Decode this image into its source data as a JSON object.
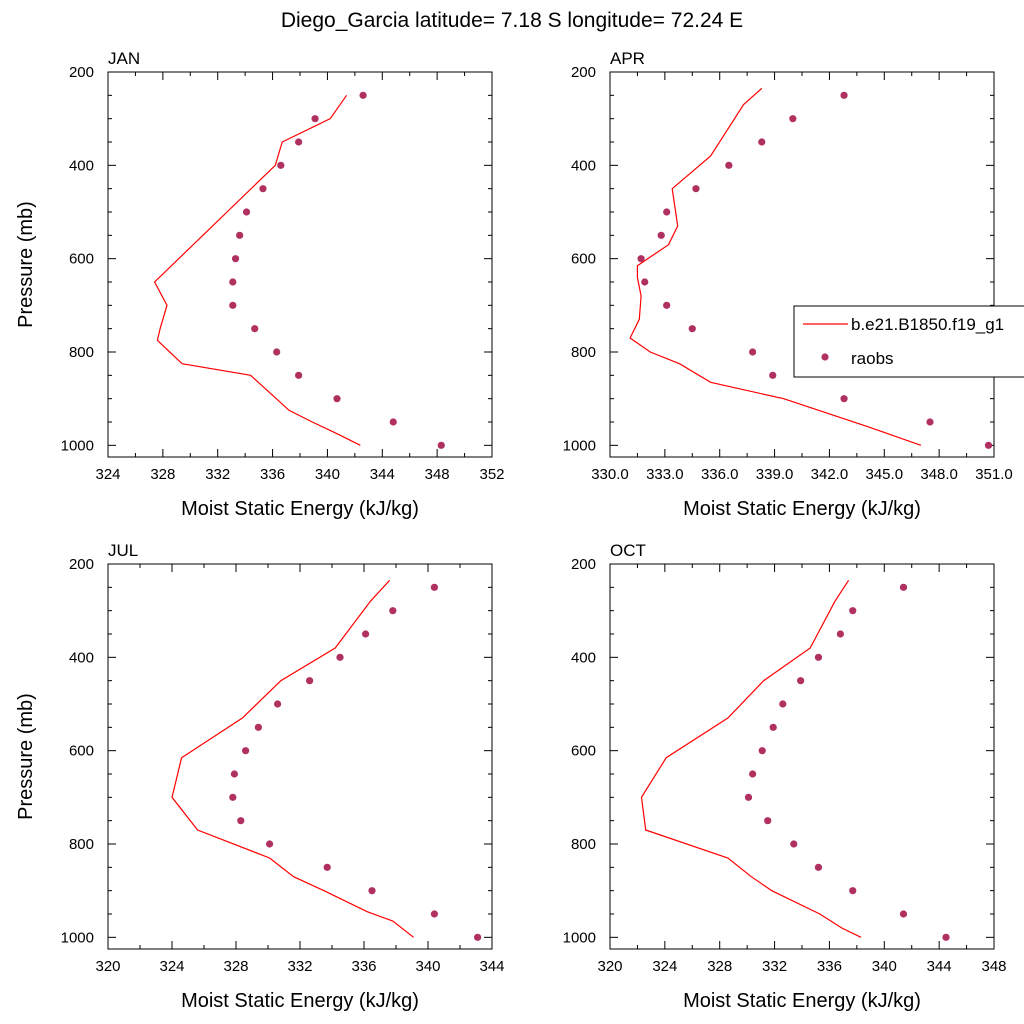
{
  "title": "Diego_Garcia  latitude= 7.18 S longitude= 72.24 E",
  "colors": {
    "model": "#ff0000",
    "obs": "#b03060",
    "axis": "#000000"
  },
  "legend": {
    "model_label": "b.e21.B1850.f19_g1",
    "obs_label": "raobs"
  },
  "chart_data": [
    {
      "type": "line",
      "panel": "JAN",
      "xlabel": "Moist Static Energy (kJ/kg)",
      "ylabel": "Pressure (mb)",
      "xlim": [
        324,
        352
      ],
      "ylim": [
        200,
        1025
      ],
      "y_inverted": true,
      "xticks": [
        324,
        328,
        332,
        336,
        340,
        344,
        348,
        352
      ],
      "xtick_labels": [
        "324",
        "328",
        "332",
        "336",
        "340",
        "344",
        "348",
        "352"
      ],
      "yticks": [
        200,
        400,
        600,
        800,
        1000
      ],
      "ytick_labels": [
        "200",
        "400",
        "600",
        "800",
        "1000"
      ],
      "model": {
        "name": "b.e21.B1850.f19_g1",
        "x": [
          342.4,
          340.7,
          338.9,
          337.2,
          334.4,
          329.4,
          327.6,
          327.8,
          328.3,
          327.4,
          336.2,
          336.7,
          340.2,
          341.4
        ],
        "y": [
          1000,
          975,
          950,
          925,
          850,
          825,
          775,
          750,
          700,
          650,
          400,
          350,
          300,
          250
        ]
      },
      "obs": {
        "name": "raobs",
        "x": [
          348.3,
          344.8,
          340.7,
          337.9,
          336.3,
          334.7,
          333.1,
          333.1,
          333.3,
          333.6,
          334.1,
          335.3,
          336.6,
          337.9,
          339.1,
          342.6
        ],
        "y": [
          1000,
          950,
          900,
          850,
          800,
          750,
          700,
          650,
          600,
          550,
          500,
          450,
          400,
          350,
          300,
          250
        ]
      }
    },
    {
      "type": "line",
      "panel": "APR",
      "xlabel": "Moist Static Energy (kJ/kg)",
      "ylabel": "",
      "xlim": [
        330,
        351
      ],
      "ylim": [
        200,
        1025
      ],
      "y_inverted": true,
      "xticks": [
        330,
        333,
        336,
        339,
        342,
        345,
        348,
        351
      ],
      "xtick_labels": [
        "330.0",
        "333.0",
        "336.0",
        "339.0",
        "342.0",
        "345.0",
        "348.0",
        "351.0"
      ],
      "yticks": [
        200,
        400,
        600,
        800,
        1000
      ],
      "ytick_labels": [
        "200",
        "400",
        "600",
        "800",
        "1000"
      ],
      "model": {
        "name": "b.e21.B1850.f19_g1",
        "x": [
          347,
          345.2,
          344.1,
          339.5,
          335.5,
          333.8,
          332.2,
          331.1,
          331.6,
          331.7,
          331.5,
          331.5,
          333.2,
          333.7,
          333.4,
          335.5,
          337.3,
          338.3
        ],
        "y": [
          1000,
          975,
          960,
          900,
          865,
          825,
          800,
          770,
          730,
          680,
          640,
          615,
          570,
          530,
          450,
          380,
          270,
          235
        ]
      },
      "obs": {
        "name": "raobs",
        "x": [
          350.7,
          347.5,
          342.8,
          338.9,
          337.8,
          334.5,
          333.1,
          331.9,
          331.7,
          332.8,
          333.1,
          334.7,
          336.5,
          338.3,
          340,
          342.8
        ],
        "y": [
          1000,
          950,
          900,
          850,
          800,
          750,
          700,
          650,
          600,
          550,
          500,
          450,
          400,
          350,
          300,
          250
        ]
      }
    },
    {
      "type": "line",
      "panel": "JUL",
      "xlabel": "Moist Static Energy (kJ/kg)",
      "ylabel": "Pressure (mb)",
      "xlim": [
        320,
        344
      ],
      "ylim": [
        200,
        1025
      ],
      "y_inverted": true,
      "xticks": [
        320,
        324,
        328,
        332,
        336,
        340,
        344
      ],
      "xtick_labels": [
        "320",
        "324",
        "328",
        "332",
        "336",
        "340",
        "344"
      ],
      "yticks": [
        200,
        400,
        600,
        800,
        1000
      ],
      "ytick_labels": [
        "200",
        "400",
        "600",
        "800",
        "1000"
      ],
      "model": {
        "name": "b.e21.B1850.f19_g1",
        "x": [
          339.1,
          337.8,
          336.2,
          333.5,
          331.6,
          330.1,
          325.6,
          324,
          324.6,
          328.4,
          330.8,
          334.2,
          336.4,
          337.6
        ],
        "y": [
          1000,
          965,
          945,
          900,
          870,
          830,
          770,
          700,
          615,
          530,
          450,
          380,
          280,
          235
        ]
      },
      "obs": {
        "name": "raobs",
        "x": [
          343.1,
          340.4,
          336.5,
          333.7,
          330.1,
          328.3,
          327.8,
          327.9,
          328.6,
          329.4,
          330.6,
          332.6,
          334.5,
          336.1,
          337.8,
          340.4
        ],
        "y": [
          1000,
          950,
          900,
          850,
          800,
          750,
          700,
          650,
          600,
          550,
          500,
          450,
          400,
          350,
          300,
          250
        ]
      }
    },
    {
      "type": "line",
      "panel": "OCT",
      "xlabel": "Moist Static Energy (kJ/kg)",
      "ylabel": "",
      "xlim": [
        320,
        348
      ],
      "ylim": [
        200,
        1025
      ],
      "y_inverted": true,
      "xticks": [
        320,
        324,
        328,
        332,
        336,
        340,
        344,
        348
      ],
      "xtick_labels": [
        "320",
        "324",
        "328",
        "332",
        "336",
        "340",
        "344",
        "348"
      ],
      "yticks": [
        200,
        400,
        600,
        800,
        1000
      ],
      "ytick_labels": [
        "200",
        "400",
        "600",
        "800",
        "1000"
      ],
      "model": {
        "name": "b.e21.B1850.f19_g1",
        "x": [
          338.3,
          336.9,
          335.3,
          331.8,
          330.3,
          328.6,
          322.6,
          322.3,
          324.1,
          328.6,
          331.2,
          334.6,
          336.4,
          337.4
        ],
        "y": [
          1000,
          980,
          950,
          900,
          870,
          830,
          770,
          700,
          615,
          530,
          450,
          380,
          280,
          235
        ]
      },
      "obs": {
        "name": "raobs",
        "x": [
          344.5,
          341.4,
          337.7,
          335.2,
          333.4,
          331.5,
          330.1,
          330.4,
          331.1,
          331.9,
          332.6,
          333.9,
          335.2,
          336.8,
          337.7,
          341.4
        ],
        "y": [
          1000,
          950,
          900,
          850,
          800,
          750,
          700,
          650,
          600,
          550,
          500,
          450,
          400,
          350,
          300,
          250
        ]
      }
    }
  ]
}
